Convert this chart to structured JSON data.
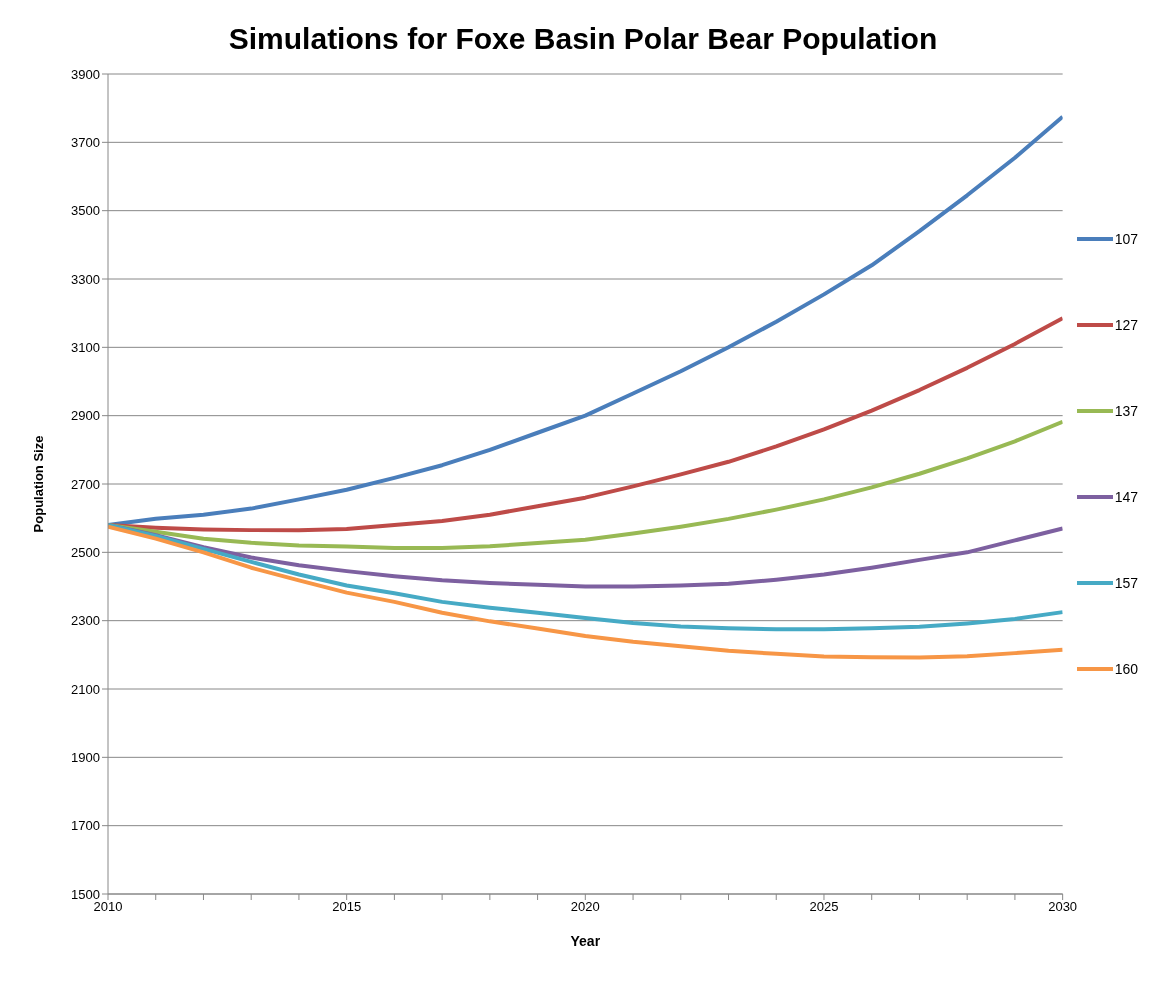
{
  "chart_data": {
    "type": "line",
    "title": "Simulations for Foxe Basin Polar Bear Population",
    "xlabel": "Year",
    "ylabel": "Population Size",
    "x": [
      2010,
      2011,
      2012,
      2013,
      2014,
      2015,
      2016,
      2017,
      2018,
      2019,
      2020,
      2021,
      2022,
      2023,
      2024,
      2025,
      2026,
      2027,
      2028,
      2029,
      2030
    ],
    "series": [
      {
        "name": "107",
        "color": "#4a7ebb",
        "values": [
          2580,
          2598,
          2610,
          2628,
          2655,
          2683,
          2718,
          2755,
          2800,
          2850,
          2900,
          2965,
          3030,
          3100,
          3175,
          3255,
          3340,
          3440,
          3545,
          3655,
          3775
        ]
      },
      {
        "name": "127",
        "color": "#be4b48",
        "values": [
          2580,
          2572,
          2567,
          2565,
          2565,
          2568,
          2580,
          2592,
          2610,
          2635,
          2660,
          2693,
          2728,
          2765,
          2810,
          2860,
          2915,
          2975,
          3040,
          3110,
          3185
        ]
      },
      {
        "name": "137",
        "color": "#98b954",
        "values": [
          2580,
          2560,
          2540,
          2528,
          2520,
          2517,
          2513,
          2513,
          2518,
          2527,
          2537,
          2555,
          2575,
          2598,
          2625,
          2655,
          2690,
          2730,
          2775,
          2825,
          2882
        ]
      },
      {
        "name": "147",
        "color": "#7d60a0",
        "values": [
          2580,
          2550,
          2515,
          2485,
          2462,
          2445,
          2430,
          2418,
          2410,
          2405,
          2400,
          2400,
          2403,
          2408,
          2420,
          2435,
          2455,
          2478,
          2500,
          2535,
          2570
        ]
      },
      {
        "name": "157",
        "color": "#46aac5",
        "values": [
          2580,
          2548,
          2510,
          2472,
          2435,
          2403,
          2380,
          2355,
          2338,
          2323,
          2308,
          2293,
          2283,
          2278,
          2275,
          2275,
          2278,
          2282,
          2292,
          2305,
          2325
        ]
      },
      {
        "name": "160",
        "color": "#f79646",
        "values": [
          2575,
          2540,
          2500,
          2455,
          2418,
          2382,
          2355,
          2323,
          2298,
          2277,
          2255,
          2238,
          2225,
          2212,
          2203,
          2195,
          2193,
          2192,
          2196,
          2205,
          2215
        ]
      }
    ],
    "xlim": [
      2010,
      2030
    ],
    "xticks": [
      2010,
      {
        "value": 2011,
        "label": null
      },
      {
        "value": 2012,
        "label": null
      },
      {
        "value": 2013,
        "label": null
      },
      {
        "value": 2014,
        "label": null
      },
      2015,
      {
        "value": 2016,
        "label": null
      },
      {
        "value": 2017,
        "label": null
      },
      {
        "value": 2018,
        "label": null
      },
      {
        "value": 2019,
        "label": null
      },
      2020,
      {
        "value": 2021,
        "label": null
      },
      {
        "value": 2022,
        "label": null
      },
      {
        "value": 2023,
        "label": null
      },
      {
        "value": 2024,
        "label": null
      },
      2025,
      {
        "value": 2026,
        "label": null
      },
      {
        "value": 2027,
        "label": null
      },
      {
        "value": 2028,
        "label": null
      },
      {
        "value": 2029,
        "label": null
      },
      2030
    ],
    "ylim": [
      1500,
      3900
    ],
    "yticks": [
      1500,
      1700,
      1900,
      2100,
      2300,
      2500,
      2700,
      2900,
      3100,
      3300,
      3500,
      3700,
      3900
    ],
    "grid": "y",
    "legend": "right",
    "marker": "none",
    "line_style": "solid"
  }
}
